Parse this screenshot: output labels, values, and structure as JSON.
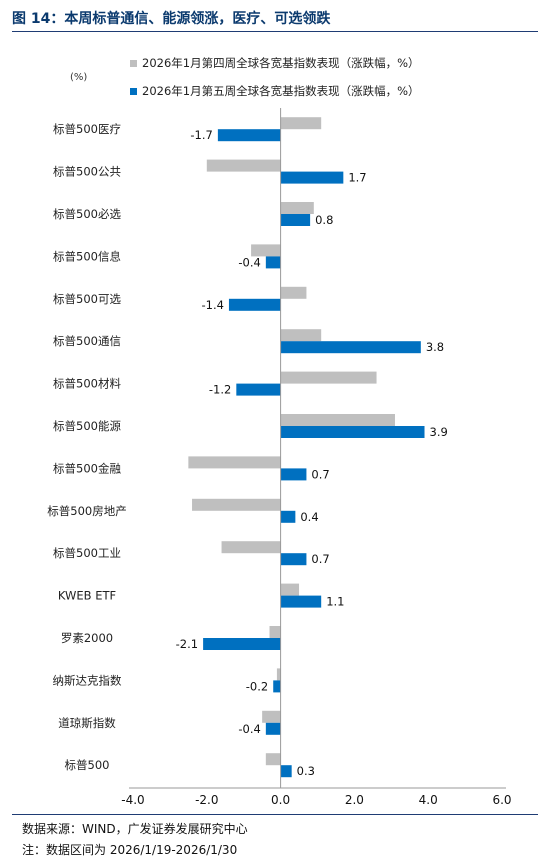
{
  "figure": {
    "title": "图 14：本周标普通信、能源领涨，医疗、可选领跌",
    "source": "数据来源：WIND，广发证券发展研究中心",
    "note": "注：数据区间为 2026/1/19-2026/1/30"
  },
  "chart_data": {
    "type": "bar",
    "orientation": "horizontal",
    "unit_label": "(%)",
    "categories": [
      "标普500医疗",
      "标普500公共",
      "标普500必选",
      "标普500信息",
      "标普500可选",
      "标普500通信",
      "标普500材料",
      "标普500能源",
      "标普500金融",
      "标普500房地产",
      "标普500工业",
      "KWEB ETF",
      "罗素2000",
      "纳斯达克指数",
      "道琼斯指数",
      "标普500"
    ],
    "series": [
      {
        "name": "2026年1月第四周全球各宽基指数表现（涨跌幅，%）",
        "color": "#bfbfbf",
        "values": [
          1.1,
          -2.0,
          0.9,
          -0.8,
          0.7,
          1.1,
          2.6,
          3.1,
          -2.5,
          -2.4,
          -1.6,
          0.5,
          -0.3,
          -0.1,
          -0.5,
          -0.4
        ]
      },
      {
        "name": "2026年1月第五周全球各宽基指数表现（涨跌幅，%）",
        "color": "#0070c0",
        "values": [
          -1.7,
          1.7,
          0.8,
          -0.4,
          -1.4,
          3.8,
          -1.2,
          3.9,
          0.7,
          0.4,
          0.7,
          1.1,
          -2.1,
          -0.2,
          -0.4,
          0.3
        ]
      }
    ],
    "data_labels": [
      "-1.7",
      "1.7",
      "0.8",
      "-0.4",
      "-1.4",
      "3.8",
      "-1.2",
      "3.9",
      "0.7",
      "0.4",
      "0.7",
      "1.1",
      "-2.1",
      "-0.2",
      "-0.4",
      "0.3"
    ],
    "xlim": [
      -4.0,
      6.0
    ],
    "xticks": [
      "-4.0",
      "-2.0",
      "0.0",
      "2.0",
      "4.0",
      "6.0"
    ],
    "legend_position": "top",
    "grid": false
  }
}
